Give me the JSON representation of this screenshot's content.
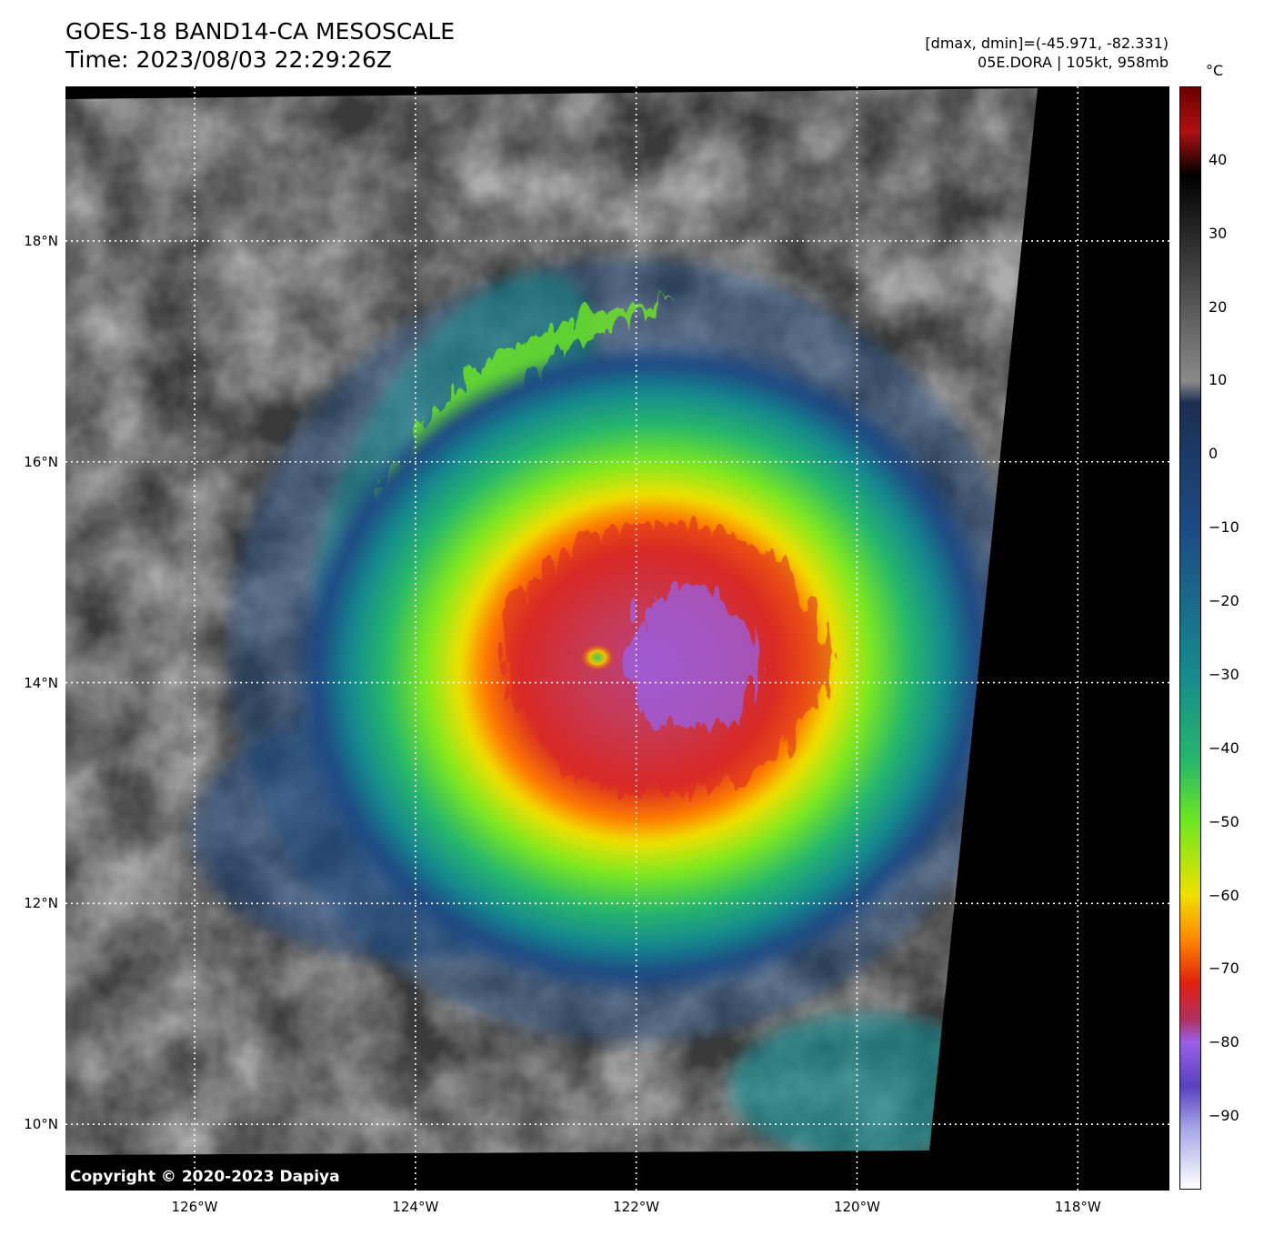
{
  "header": {
    "title_line1": "GOES-18 BAND14-CA MESOSCALE",
    "title_line2": "Time: 2023/08/03 22:29:26Z",
    "info_line1": "[dmax, dmin]=(-45.971, -82.331)",
    "info_line2": "05E.DORA | 105kt, 958mb"
  },
  "map": {
    "lon_range": [
      -127.17,
      -117.17
    ],
    "lat_range": [
      9.4,
      19.4
    ],
    "lon_ticks": [
      {
        "value": -126,
        "label": "126°W"
      },
      {
        "value": -124,
        "label": "124°W"
      },
      {
        "value": -122,
        "label": "122°W"
      },
      {
        "value": -120,
        "label": "120°W"
      },
      {
        "value": -118,
        "label": "118°W"
      }
    ],
    "lat_ticks": [
      {
        "value": 18,
        "label": "18°N"
      },
      {
        "value": 16,
        "label": "16°N"
      },
      {
        "value": 14,
        "label": "14°N"
      },
      {
        "value": 12,
        "label": "12°N"
      },
      {
        "value": 10,
        "label": "10°N"
      }
    ],
    "storm_center": {
      "lon": -122.32,
      "lat": 14.25
    },
    "gridlines": "dotted white",
    "no_data_color": "#000000"
  },
  "colorbar": {
    "unit": "°C",
    "range": [
      -100,
      50
    ],
    "tick_labels": [
      {
        "value": 40,
        "label": "40"
      },
      {
        "value": 30,
        "label": "30"
      },
      {
        "value": 20,
        "label": "20"
      },
      {
        "value": 10,
        "label": "10"
      },
      {
        "value": 0,
        "label": "0"
      },
      {
        "value": -10,
        "label": "−10"
      },
      {
        "value": -20,
        "label": "−20"
      },
      {
        "value": -30,
        "label": "−30"
      },
      {
        "value": -40,
        "label": "−40"
      },
      {
        "value": -50,
        "label": "−50"
      },
      {
        "value": -60,
        "label": "−60"
      },
      {
        "value": -70,
        "label": "−70"
      },
      {
        "value": -80,
        "label": "−80"
      },
      {
        "value": -90,
        "label": "−90"
      }
    ],
    "stops": [
      {
        "value": 50,
        "color": "#6a0000"
      },
      {
        "value": 44,
        "color": "#b01010"
      },
      {
        "value": 38,
        "color": "#000000"
      },
      {
        "value": 10,
        "color": "#8a8a8a"
      },
      {
        "value": 7,
        "color": "#1b2e52"
      },
      {
        "value": -10,
        "color": "#1c4a84"
      },
      {
        "value": -30,
        "color": "#168a8e"
      },
      {
        "value": -42,
        "color": "#27b86a"
      },
      {
        "value": -50,
        "color": "#6ee820"
      },
      {
        "value": -60,
        "color": "#f0e000"
      },
      {
        "value": -66,
        "color": "#ff8800"
      },
      {
        "value": -72,
        "color": "#e02010"
      },
      {
        "value": -77,
        "color": "#b03060"
      },
      {
        "value": -80,
        "color": "#9a60e6"
      },
      {
        "value": -86,
        "color": "#5a40c0"
      },
      {
        "value": -92,
        "color": "#a8a8e8"
      },
      {
        "value": -100,
        "color": "#ffffff"
      }
    ]
  },
  "footer": {
    "copyright": "Copyright © 2020-2023 Dapiya"
  },
  "icons": [
    "tropical-cyclone-eye-icon"
  ]
}
